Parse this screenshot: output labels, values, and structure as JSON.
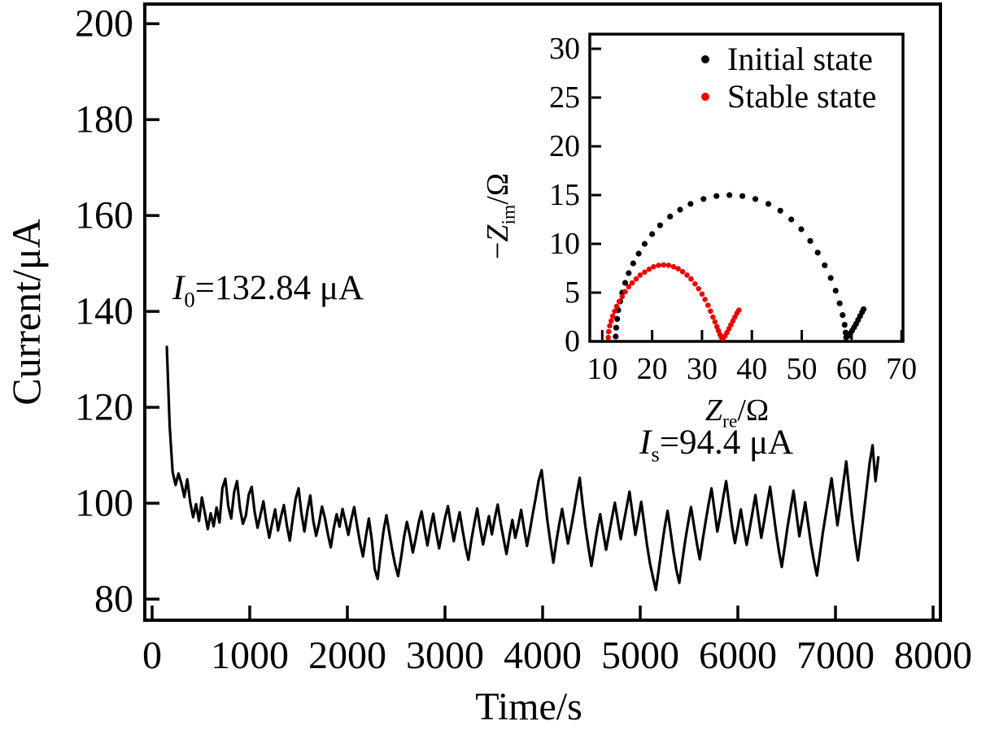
{
  "figure": {
    "background": "#ffffff",
    "frame_color": "#000000"
  },
  "chart_data": [
    {
      "type": "line",
      "name": "chronoamperometry",
      "xlabel": "Time/s",
      "ylabel": "Current/μA",
      "xlim": [
        -75,
        8075
      ],
      "ylim": [
        75.6,
        204.1
      ],
      "xticks": [
        0,
        1000,
        2000,
        3000,
        4000,
        5000,
        6000,
        7000,
        8000
      ],
      "yticks": [
        80,
        100,
        120,
        140,
        160,
        180,
        200
      ],
      "grid": false,
      "annotations": [
        {
          "var": "I",
          "sub": "0",
          "rest": "=132.84 μA"
        },
        {
          "var": "I",
          "sub": "s",
          "rest": "=94.4 μA"
        }
      ],
      "series": [
        {
          "name": "current",
          "color": "#000000",
          "line_width": 3.2,
          "t_start": 150,
          "t_step": 30,
          "values": [
            132.84,
            116,
            106.5,
            103.8,
            106.2,
            104.1,
            101.3,
            105,
            100.2,
            97.1,
            99.8,
            96.3,
            101.2,
            98,
            94.6,
            97.9,
            95.2,
            99.1,
            96,
            103.2,
            105.1,
            99.4,
            96.8,
            102.3,
            104.6,
            98.9,
            95.7,
            97.4,
            101.8,
            103.4,
            98.2,
            94.9,
            97.6,
            100.4,
            96.1,
            92.8,
            95.9,
            98.7,
            94.3,
            97.2,
            99.6,
            95.4,
            92.2,
            96.7,
            100.9,
            103.1,
            97.8,
            94.1,
            98.4,
            101.6,
            96.4,
            93.2,
            95.8,
            99.3,
            96.9,
            93.6,
            90.8,
            94.7,
            97.7,
            95.1,
            98.8,
            96.2,
            93.4,
            96.6,
            99.2,
            95.3,
            91.7,
            88.9,
            93.1,
            96.8,
            92.4,
            86.3,
            84.2,
            89.5,
            94.2,
            97.5,
            93.8,
            90.2,
            87.1,
            84.8,
            88.6,
            92.9,
            96.1,
            93.3,
            89.7,
            92.6,
            95.9,
            98.3,
            94.6,
            91.2,
            94.9,
            97.8,
            93.9,
            90.6,
            93.7,
            96.9,
            99.4,
            95.6,
            92.1,
            95.2,
            98.1,
            94.4,
            90.9,
            88.2,
            92.3,
            95.7,
            98.9,
            94.8,
            91.4,
            94.5,
            97.3,
            93.5,
            96.8,
            99.7,
            95.9,
            92.6,
            89.4,
            93.2,
            96.5,
            92.8,
            95.4,
            98.6,
            94.7,
            91.1,
            94.3,
            97.9,
            101.2,
            104.8,
            106.9,
            101.5,
            96.2,
            91.8,
            87.6,
            91.9,
            95.6,
            98.8,
            95.1,
            91.6,
            94.8,
            98.2,
            101.9,
            105.3,
            99.8,
            94.9,
            90.7,
            86.9,
            90.8,
            94.6,
            97.7,
            93.9,
            90.3,
            93.6,
            96.9,
            100.1,
            96.3,
            92.5,
            95.8,
            99.1,
            102.4,
            97.9,
            93.4,
            96.7,
            100.3,
            95.8,
            91.2,
            87.4,
            84.6,
            81.9,
            86.2,
            90.7,
            94.9,
            98.4,
            94.2,
            89.8,
            86.1,
            83.4,
            87.8,
            92.1,
            95.8,
            99.2,
            95.4,
            91.6,
            88.3,
            92.4,
            96.2,
            99.8,
            103.1,
            98.6,
            94.1,
            97.4,
            101.2,
            104.6,
            99.9,
            95.3,
            91.7,
            95.1,
            98.7,
            94.9,
            91.3,
            94.6,
            98.1,
            101.7,
            97.2,
            92.8,
            96.3,
            99.9,
            103.4,
            98.8,
            94.2,
            90.1,
            86.7,
            90.9,
            95.2,
            98.9,
            102.6,
            97.8,
            93.1,
            96.6,
            100.2,
            95.7,
            91.4,
            87.9,
            84.9,
            89.3,
            93.8,
            97.6,
            101.4,
            105.2,
            100.3,
            95.4,
            99.6,
            104.1,
            108.7,
            102.9,
            97.1,
            92.3,
            88.1,
            92.8,
            97.9,
            103.2,
            108.4,
            112.1,
            104.6,
            109.8
          ]
        }
      ]
    },
    {
      "type": "scatter",
      "name": "nyquist-inset",
      "xlabel_parts": {
        "var": "Z",
        "sub": "re",
        "unit": "/Ω"
      },
      "ylabel_parts": {
        "minus": "−",
        "var": "Z",
        "sub": "im",
        "unit": "/Ω"
      },
      "xlim": [
        7.5,
        70.3
      ],
      "ylim": [
        0,
        31.5
      ],
      "xticks": [
        10,
        20,
        30,
        40,
        50,
        60,
        70
      ],
      "yticks": [
        0,
        5,
        10,
        15,
        20,
        25,
        30
      ],
      "grid": false,
      "legend_position": "top-right",
      "legend": [
        {
          "label": "Initial state",
          "color": "#000000"
        },
        {
          "label": "Stable state",
          "color": "#ee0000"
        }
      ],
      "series": [
        {
          "name": "Initial state",
          "color": "#000000",
          "marker_radius": 3.6,
          "points": [
            [
              12.7,
              0.5
            ],
            [
              12.8,
              1.4
            ],
            [
              13,
              2.3
            ],
            [
              13.2,
              3.2
            ],
            [
              13.6,
              4.1
            ],
            [
              14,
              5
            ],
            [
              14.6,
              6
            ],
            [
              15.3,
              7
            ],
            [
              16.2,
              8
            ],
            [
              17.3,
              9
            ],
            [
              18.5,
              10
            ],
            [
              20,
              11
            ],
            [
              21.6,
              11.9
            ],
            [
              23.6,
              12.8
            ],
            [
              25.6,
              13.5
            ],
            [
              27.7,
              14.1
            ],
            [
              30.3,
              14.6
            ],
            [
              32.9,
              14.9
            ],
            [
              35.5,
              15
            ],
            [
              38.1,
              14.9
            ],
            [
              40.7,
              14.6
            ],
            [
              43.3,
              14.1
            ],
            [
              45.7,
              13.4
            ],
            [
              47.9,
              12.5
            ],
            [
              49.9,
              11.5
            ],
            [
              51.7,
              10.3
            ],
            [
              53.2,
              9.1
            ],
            [
              54.6,
              7.8
            ],
            [
              55.8,
              6.5
            ],
            [
              56.8,
              5.2
            ],
            [
              57.6,
              3.9
            ],
            [
              58.2,
              2.7
            ],
            [
              58.6,
              1.7
            ],
            [
              58.8,
              0.9
            ],
            [
              58.9,
              0.4
            ],
            [
              59.3,
              0.55
            ],
            [
              59.7,
              0.8
            ],
            [
              60.1,
              1.1
            ],
            [
              60.5,
              1.45
            ],
            [
              60.9,
              1.8
            ],
            [
              61.3,
              2.2
            ],
            [
              61.7,
              2.6
            ],
            [
              62.1,
              3
            ],
            [
              62.4,
              3.3
            ]
          ]
        },
        {
          "name": "Stable state",
          "color": "#ee0000",
          "marker_radius": 3.3,
          "points": [
            [
              11.2,
              0.4
            ],
            [
              11.3,
              1
            ],
            [
              11.5,
              1.6
            ],
            [
              11.8,
              2.1
            ],
            [
              12.1,
              2.6
            ],
            [
              12.5,
              3.1
            ],
            [
              12.9,
              3.6
            ],
            [
              13.4,
              4.1
            ],
            [
              14,
              4.6
            ],
            [
              14.6,
              5.1
            ],
            [
              15.3,
              5.6
            ],
            [
              16,
              6
            ],
            [
              16.8,
              6.4
            ],
            [
              17.6,
              6.8
            ],
            [
              18.5,
              7.1
            ],
            [
              19.4,
              7.4
            ],
            [
              20.3,
              7.65
            ],
            [
              21.3,
              7.8
            ],
            [
              22.3,
              7.85
            ],
            [
              23.3,
              7.8
            ],
            [
              24.3,
              7.65
            ],
            [
              25.2,
              7.45
            ],
            [
              26.1,
              7.15
            ],
            [
              27,
              6.8
            ],
            [
              27.8,
              6.4
            ],
            [
              28.6,
              5.9
            ],
            [
              29.3,
              5.4
            ],
            [
              30,
              4.85
            ],
            [
              30.6,
              4.3
            ],
            [
              31.2,
              3.7
            ],
            [
              31.7,
              3.1
            ],
            [
              32.2,
              2.5
            ],
            [
              32.6,
              2
            ],
            [
              33,
              1.5
            ],
            [
              33.3,
              1.1
            ],
            [
              33.6,
              0.7
            ],
            [
              33.9,
              0.4
            ],
            [
              34.2,
              0.3
            ],
            [
              34.6,
              0.55
            ],
            [
              35,
              0.9
            ],
            [
              35.4,
              1.3
            ],
            [
              35.8,
              1.7
            ],
            [
              36.2,
              2.1
            ],
            [
              36.6,
              2.5
            ],
            [
              37,
              2.9
            ],
            [
              37.4,
              3.2
            ]
          ]
        }
      ]
    }
  ]
}
